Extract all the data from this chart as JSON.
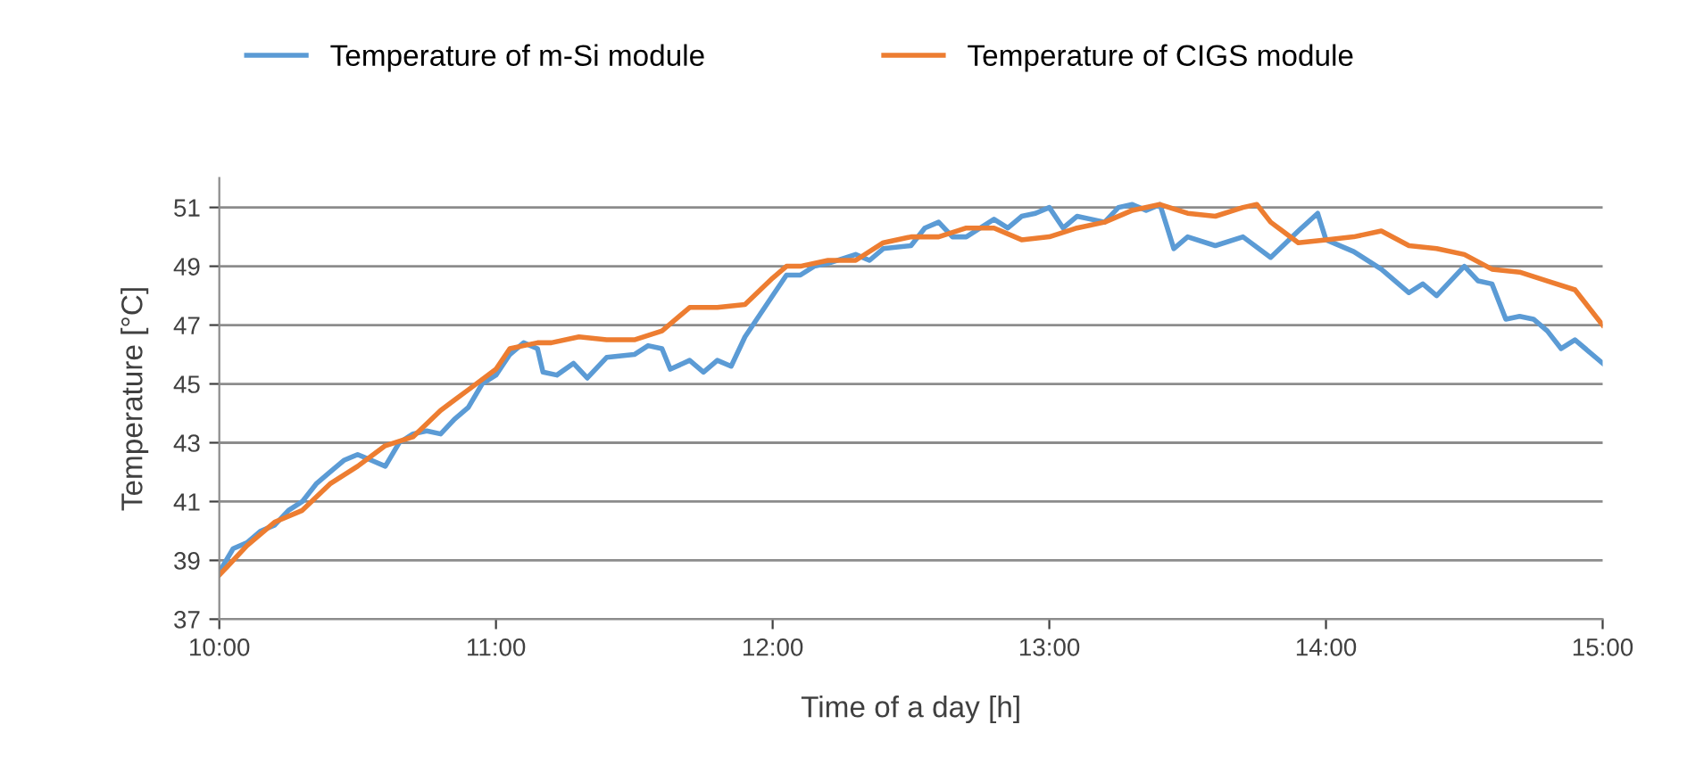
{
  "chart_data": {
    "type": "line",
    "xlabel": "Time of a day [h]",
    "ylabel": "Temperature [°C]",
    "xlim": [
      10,
      15
    ],
    "xticks": [
      {
        "value": 10,
        "label": "10:00"
      },
      {
        "value": 11,
        "label": "11:00"
      },
      {
        "value": 12,
        "label": "12:00"
      },
      {
        "value": 13,
        "label": "13:00"
      },
      {
        "value": 14,
        "label": "14:00"
      },
      {
        "value": 15,
        "label": "15:00"
      }
    ],
    "ylim": [
      37,
      52
    ],
    "yticks": [
      37,
      39,
      41,
      43,
      45,
      47,
      49,
      51
    ],
    "grid": "y",
    "legend": "top",
    "marker": "none",
    "line_style": "solid",
    "series": [
      {
        "name": "Temperature of m-Si module",
        "color": "#5b9bd5",
        "x": [
          10.0,
          10.05,
          10.1,
          10.15,
          10.2,
          10.25,
          10.3,
          10.35,
          10.4,
          10.45,
          10.5,
          10.55,
          10.6,
          10.65,
          10.7,
          10.75,
          10.8,
          10.85,
          10.9,
          10.95,
          11.0,
          11.05,
          11.1,
          11.15,
          11.17,
          11.22,
          11.28,
          11.33,
          11.4,
          11.5,
          11.55,
          11.6,
          11.63,
          11.7,
          11.75,
          11.8,
          11.85,
          11.9,
          12.0,
          12.05,
          12.1,
          12.15,
          12.2,
          12.3,
          12.35,
          12.4,
          12.5,
          12.55,
          12.6,
          12.65,
          12.7,
          12.8,
          12.85,
          12.9,
          12.95,
          13.0,
          13.05,
          13.1,
          13.2,
          13.25,
          13.3,
          13.35,
          13.4,
          13.45,
          13.5,
          13.6,
          13.7,
          13.8,
          13.9,
          13.97,
          14.0,
          14.1,
          14.2,
          14.3,
          14.35,
          14.4,
          14.5,
          14.55,
          14.6,
          14.65,
          14.7,
          14.75,
          14.8,
          14.85,
          14.9,
          15.0
        ],
        "values": [
          38.6,
          39.4,
          39.6,
          40.0,
          40.2,
          40.7,
          41.0,
          41.6,
          42.0,
          42.4,
          42.6,
          42.4,
          42.2,
          43.0,
          43.3,
          43.4,
          43.3,
          43.8,
          44.2,
          45.0,
          45.3,
          46.0,
          46.4,
          46.2,
          45.4,
          45.3,
          45.7,
          45.2,
          45.9,
          46.0,
          46.3,
          46.2,
          45.5,
          45.8,
          45.4,
          45.8,
          45.6,
          46.6,
          48.0,
          48.7,
          48.7,
          49.0,
          49.1,
          49.4,
          49.2,
          49.6,
          49.7,
          50.3,
          50.5,
          50.0,
          50.0,
          50.6,
          50.3,
          50.7,
          50.8,
          51.0,
          50.3,
          50.7,
          50.5,
          51.0,
          51.1,
          50.9,
          51.1,
          49.6,
          50.0,
          49.7,
          50.0,
          49.3,
          50.2,
          50.8,
          49.9,
          49.5,
          48.9,
          48.1,
          48.4,
          48.0,
          49.0,
          48.5,
          48.4,
          47.2,
          47.3,
          47.2,
          46.8,
          46.2,
          46.5,
          45.7
        ]
      },
      {
        "name": "Temperature of CIGS module",
        "color": "#ed7d31",
        "x": [
          10.0,
          10.1,
          10.2,
          10.3,
          10.4,
          10.5,
          10.6,
          10.7,
          10.8,
          10.9,
          11.0,
          11.05,
          11.1,
          11.15,
          11.2,
          11.3,
          11.4,
          11.5,
          11.6,
          11.7,
          11.8,
          11.9,
          12.0,
          12.05,
          12.1,
          12.2,
          12.3,
          12.4,
          12.5,
          12.6,
          12.7,
          12.8,
          12.9,
          13.0,
          13.1,
          13.2,
          13.3,
          13.4,
          13.5,
          13.6,
          13.7,
          13.75,
          13.8,
          13.9,
          14.0,
          14.1,
          14.2,
          14.3,
          14.4,
          14.5,
          14.6,
          14.7,
          14.8,
          14.9,
          15.0
        ],
        "values": [
          38.5,
          39.5,
          40.3,
          40.7,
          41.6,
          42.2,
          42.9,
          43.2,
          44.1,
          44.8,
          45.5,
          46.2,
          46.3,
          46.4,
          46.4,
          46.6,
          46.5,
          46.5,
          46.8,
          47.6,
          47.6,
          47.7,
          48.6,
          49.0,
          49.0,
          49.2,
          49.2,
          49.8,
          50.0,
          50.0,
          50.3,
          50.3,
          49.9,
          50.0,
          50.3,
          50.5,
          50.9,
          51.1,
          50.8,
          50.7,
          51.0,
          51.1,
          50.5,
          49.8,
          49.9,
          50.0,
          50.2,
          49.7,
          49.6,
          49.4,
          48.9,
          48.8,
          48.5,
          48.2,
          47.0
        ]
      }
    ]
  }
}
